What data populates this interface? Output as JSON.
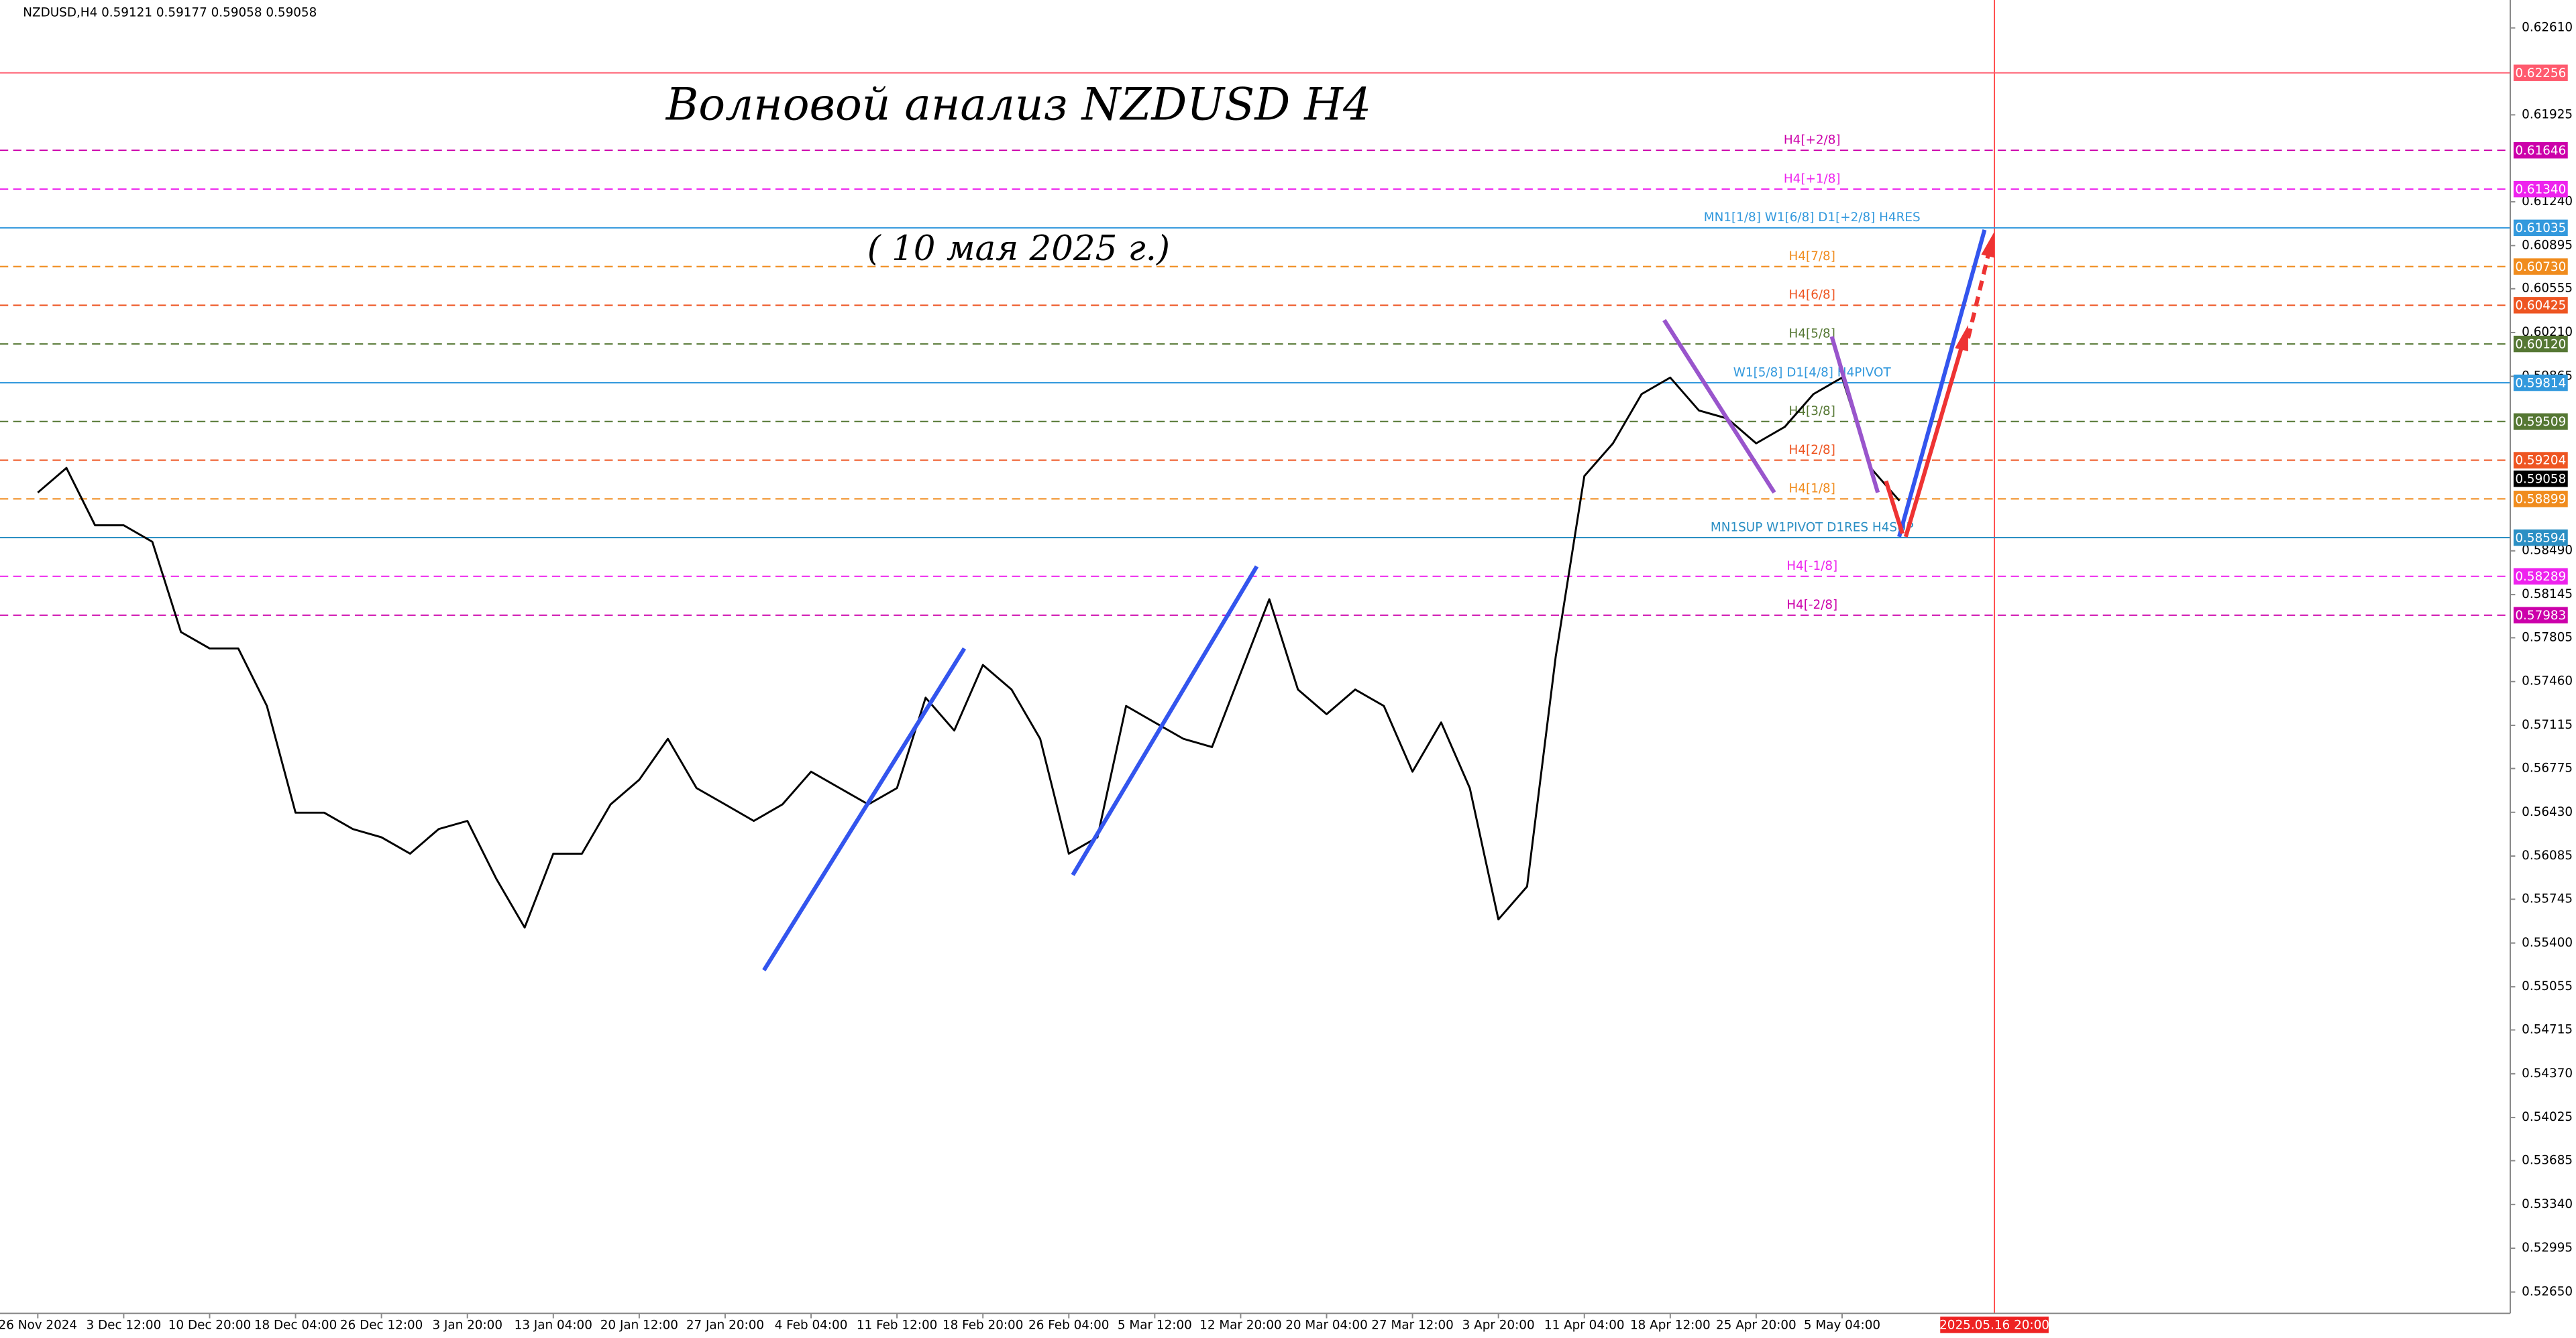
{
  "chart_data": {
    "type": "line",
    "header": "NZDUSD,H4  0.59121 0.59177 0.59058 0.59058",
    "title": "Волновой анализ NZDUSD H4",
    "subtitle": "( 10 мая 2025 г.)",
    "color": "#000000",
    "categories": [
      "26 Nov 2024",
      null,
      null,
      "3 Dec 12:00",
      null,
      null,
      "10 Dec 20:00",
      null,
      null,
      "18 Dec 04:00",
      null,
      null,
      "26 Dec 12:00",
      null,
      null,
      "3 Jan 20:00",
      null,
      null,
      "13 Jan 04:00",
      null,
      null,
      "20 Jan 12:00",
      null,
      null,
      "27 Jan 20:00",
      null,
      null,
      "4 Feb 04:00",
      null,
      null,
      "11 Feb 12:00",
      null,
      null,
      "18 Feb 20:00",
      null,
      null,
      "26 Feb 04:00",
      null,
      null,
      "5 Mar 12:00",
      null,
      null,
      "12 Mar 20:00",
      null,
      null,
      "20 Mar 04:00",
      null,
      null,
      "27 Mar 12:00",
      null,
      null,
      "3 Apr 20:00",
      null,
      null,
      "11 Apr 04:00",
      null,
      null,
      "18 Apr 12:00",
      null,
      null,
      "25 Apr 20:00",
      null,
      null,
      "5 May 04:00",
      null,
      null
    ],
    "values": [
      0.58949,
      0.59143,
      0.58691,
      0.58691,
      0.58561,
      0.5785,
      0.57721,
      0.57721,
      0.57268,
      0.56427,
      0.56427,
      0.56298,
      0.56233,
      0.56104,
      0.56298,
      0.56362,
      0.5591,
      0.55522,
      0.56104,
      0.56104,
      0.56492,
      0.56686,
      0.57009,
      0.56621,
      0.56492,
      0.56362,
      0.56492,
      0.5675,
      0.56621,
      0.56492,
      0.56621,
      0.57333,
      0.57074,
      0.57591,
      0.57397,
      0.57009,
      0.56104,
      0.56233,
      0.57268,
      0.57138,
      0.57009,
      0.56944,
      0.57527,
      0.58109,
      0.57397,
      0.57203,
      0.57397,
      0.57268,
      0.5675,
      0.57138,
      0.56621,
      0.55586,
      0.55845,
      0.57656,
      0.59079,
      0.59337,
      0.59725,
      0.59855,
      0.59596,
      0.59532,
      0.59337,
      0.59467,
      0.59725,
      0.59855,
      0.59143,
      0.58885
    ],
    "ylim": [
      0.52482,
      0.6283
    ],
    "yticks": [
      {
        "value": 0.6261,
        "label": "0.62610"
      },
      {
        "value": 0.61925,
        "label": "0.61925"
      },
      {
        "value": 0.6124,
        "label": "0.61240"
      },
      {
        "value": 0.60895,
        "label": "0.60895"
      },
      {
        "value": 0.60555,
        "label": "0.60555"
      },
      {
        "value": 0.6021,
        "label": "0.60210"
      },
      {
        "value": 0.59865,
        "label": "0.59865"
      },
      {
        "value": 0.5849,
        "label": "0.58490"
      },
      {
        "value": 0.58145,
        "label": "0.58145"
      },
      {
        "value": 0.57805,
        "label": "0.57805"
      },
      {
        "value": 0.5746,
        "label": "0.57460"
      },
      {
        "value": 0.57115,
        "label": "0.57115"
      },
      {
        "value": 0.56775,
        "label": "0.56775"
      },
      {
        "value": 0.5643,
        "label": "0.56430"
      },
      {
        "value": 0.56085,
        "label": "0.56085"
      },
      {
        "value": 0.55745,
        "label": "0.55745"
      },
      {
        "value": 0.554,
        "label": "0.55400"
      },
      {
        "value": 0.55055,
        "label": "0.55055"
      },
      {
        "value": 0.54715,
        "label": "0.54715"
      },
      {
        "value": 0.5437,
        "label": "0.54370"
      },
      {
        "value": 0.54025,
        "label": "0.54025"
      },
      {
        "value": 0.53685,
        "label": "0.53685"
      },
      {
        "value": 0.5334,
        "label": "0.53340"
      },
      {
        "value": 0.52995,
        "label": "0.52995"
      },
      {
        "value": 0.5265,
        "label": "0.52650"
      }
    ],
    "levels": [
      {
        "value": 0.62256,
        "value_label": "0.62256",
        "color": "#ff5a6e",
        "dashed": false
      },
      {
        "value": 0.61646,
        "value_label": "0.61646",
        "name": "H4[+2/8]",
        "color": "#cc00aa",
        "dashed": true
      },
      {
        "value": 0.6134,
        "value_label": "0.61340",
        "name": "H4[+1/8]",
        "color": "#ee22ee",
        "dashed": true
      },
      {
        "value": 0.61035,
        "value_label": "0.61035",
        "name": "MN1[1/8] W1[6/8] D1[+2/8] H4RES",
        "color": "#3399dd",
        "dashed": false
      },
      {
        "value": 0.6073,
        "value_label": "0.60730",
        "name": "H4[7/8]",
        "color": "#f08c1e",
        "dashed": true
      },
      {
        "value": 0.60425,
        "value_label": "0.60425",
        "name": "H4[6/8]",
        "color": "#ee5522",
        "dashed": true
      },
      {
        "value": 0.6012,
        "value_label": "0.60120",
        "name": "H4[5/8]",
        "color": "#557733",
        "dashed": true
      },
      {
        "value": 0.59814,
        "value_label": "0.59814",
        "name": "W1[5/8] D1[4/8] H4PIVOT",
        "color": "#3399dd",
        "dashed": false
      },
      {
        "value": 0.59509,
        "value_label": "0.59509",
        "name": "H4[3/8]",
        "color": "#557733",
        "dashed": true
      },
      {
        "value": 0.59204,
        "value_label": "0.59204",
        "name": "H4[2/8]",
        "color": "#ee5522",
        "dashed": true
      },
      {
        "value": 0.58899,
        "value_label": "0.58899",
        "name": "H4[1/8]",
        "color": "#f08c1e",
        "dashed": true
      },
      {
        "value": 0.58594,
        "value_label": "0.58594",
        "name": "MN1SUP W1PIVOT D1RES H4SUP",
        "color": "#2b8fc4",
        "dashed": false
      },
      {
        "value": 0.58289,
        "value_label": "0.58289",
        "name": "H4[-1/8]",
        "color": "#ee22ee",
        "dashed": true
      },
      {
        "value": 0.57983,
        "value_label": "0.57983",
        "name": "H4[-2/8]",
        "color": "#cc00aa",
        "dashed": true
      }
    ],
    "current_price": {
      "value": 0.59058,
      "label": "0.59058"
    },
    "marker_label": "2025.05.16 20:00"
  }
}
